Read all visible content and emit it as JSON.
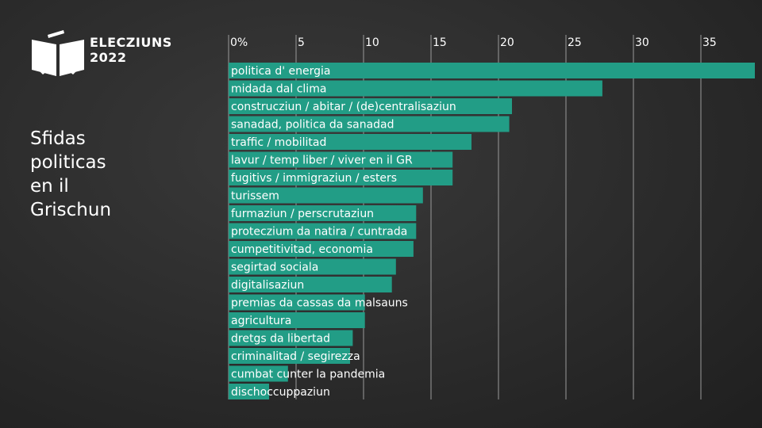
{
  "brand": {
    "line1": "ELECZIUNS",
    "line2": "2022",
    "logo_icon": "ballot-box-icon"
  },
  "title_lines": [
    "Sfidas",
    "politicas",
    "en il",
    "Grischun"
  ],
  "colors": {
    "bar": "#229d86",
    "gridline": "#9a9a9a",
    "text": "#ffffff",
    "background": "#2b2b2b"
  },
  "chart_data": {
    "type": "bar",
    "orientation": "horizontal",
    "title": "",
    "xlabel": "",
    "ylabel": "",
    "xlim": [
      0,
      39
    ],
    "x_ticks": [
      0,
      5,
      10,
      15,
      20,
      25,
      30,
      35
    ],
    "x_tick_labels": [
      "0%",
      "5",
      "10",
      "15",
      "20",
      "25",
      "30",
      "35"
    ],
    "grid": true,
    "categories": [
      "politica d' energia",
      "midada dal clima",
      "construcziun / abitar / (de)centralisaziun",
      "sanadad, politica da sanadad",
      "traffic / mobilitad",
      "lavur / temp liber / viver en il GR",
      "fugitivs / immigraziun / esters",
      "turissem",
      "furmaziun / perscrutaziun",
      "proteczium da natira / cuntrada",
      "cumpetitivitad, economia",
      "segirtad sociala",
      "digitalisaziun",
      "premias da cassas da malsauns",
      "agricultura",
      "dretgs da libertad",
      "criminalitad / segirezza",
      "cumbat cunter la pandemia",
      "dischoccuppaziun"
    ],
    "values": [
      39,
      27.7,
      21,
      20.8,
      18,
      16.6,
      16.6,
      14.4,
      13.9,
      13.9,
      13.7,
      12.4,
      12.1,
      10.1,
      10.1,
      9.2,
      9.0,
      4.4,
      3.0
    ]
  }
}
